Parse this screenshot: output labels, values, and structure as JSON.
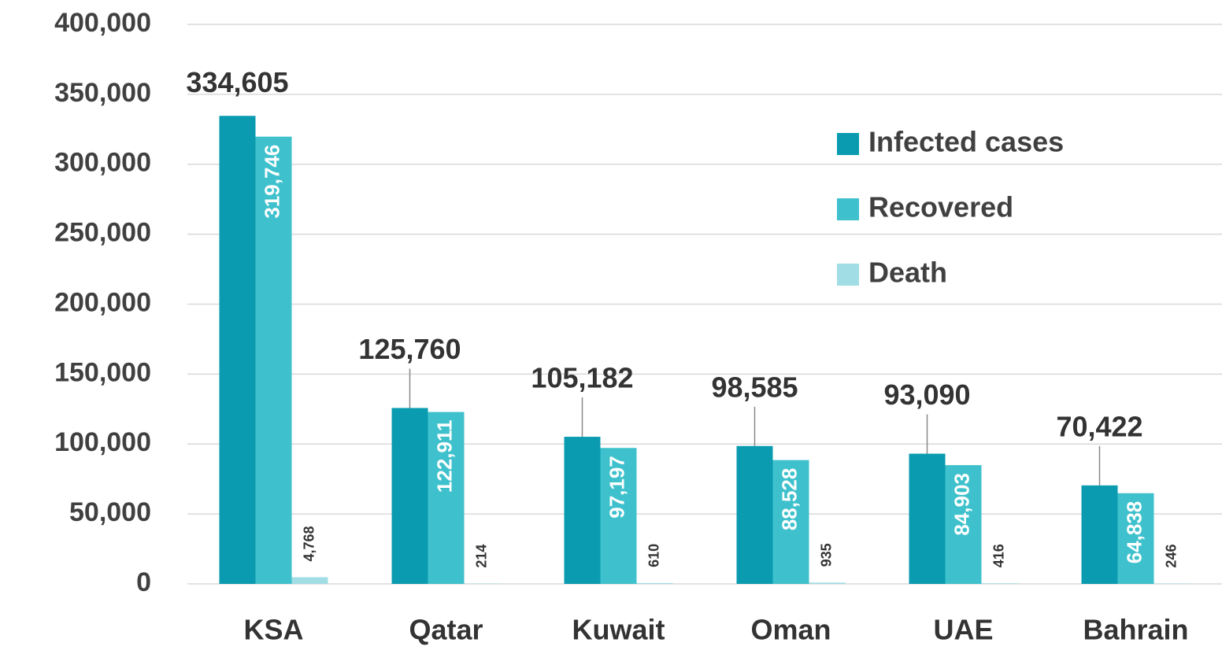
{
  "chart_data": {
    "type": "bar",
    "categories": [
      "KSA",
      "Qatar",
      "Kuwait",
      "Oman",
      "UAE",
      "Bahrain"
    ],
    "series": [
      {
        "name": "Infected cases",
        "color": "#0a9bb0",
        "values": [
          334605,
          125760,
          105182,
          98585,
          93090,
          70422
        ],
        "value_labels": [
          "334,605",
          "125,760",
          "105,182",
          "98,585",
          "93,090",
          "70,422"
        ]
      },
      {
        "name": "Recovered",
        "color": "#3ec1cc",
        "values": [
          319746,
          122911,
          97197,
          88528,
          84903,
          64838
        ],
        "value_labels": [
          "319,746",
          "122,911",
          "97,197",
          "88,528",
          "84,903",
          "64,838"
        ]
      },
      {
        "name": "Death",
        "color": "#a0dde4",
        "values": [
          4768,
          214,
          610,
          935,
          416,
          246
        ],
        "value_labels": [
          "4,768",
          "214",
          "610",
          "935",
          "416",
          "246"
        ]
      }
    ],
    "ylim": [
      0,
      400000
    ],
    "yticks": [
      0,
      {
        "value": 50000,
        "label": "50,000"
      },
      {
        "value": 100000,
        "label": "100,000"
      },
      {
        "value": 150000,
        "label": "150,000"
      },
      {
        "value": 200000,
        "label": "200,000"
      },
      {
        "value": 250000,
        "label": "250,000"
      },
      {
        "value": 300000,
        "label": "300,000"
      },
      {
        "value": 350000,
        "label": "350,000"
      },
      {
        "value": 400000,
        "label": "400,000"
      }
    ],
    "grid": true,
    "legend": "upper right"
  }
}
